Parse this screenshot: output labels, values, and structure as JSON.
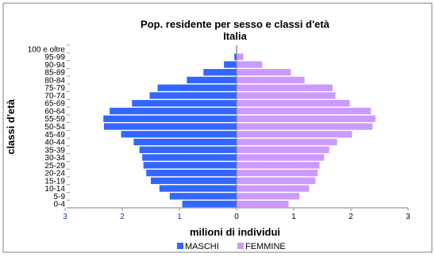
{
  "chart_data": {
    "type": "bar",
    "orientation": "horizontal-pyramid",
    "title": "Pop. residente per sesso e classi d'età",
    "subtitle": "Italia",
    "xlabel": "milioni di individui",
    "ylabel": "classi d'età",
    "xlim": [
      -3,
      3
    ],
    "x_ticks": [
      -3,
      -2,
      -1,
      0,
      1,
      2,
      3
    ],
    "x_tick_labels": [
      "3",
      "2",
      "1",
      "0",
      "1",
      "2",
      "3"
    ],
    "grid": false,
    "legend_position": "bottom",
    "categories": [
      "0-4",
      "5-9",
      "10-14",
      "15-19",
      "20-24",
      "25-29",
      "30-34",
      "35-39",
      "40-44",
      "45-49",
      "50-54",
      "55-59",
      "60-64",
      "65-69",
      "70-74",
      "75-79",
      "80-84",
      "85-89",
      "90-94",
      "95-99",
      "100 e oltre"
    ],
    "series": [
      {
        "name": "MASCHI",
        "color": "#3366ff",
        "values": [
          0.95,
          1.17,
          1.35,
          1.5,
          1.58,
          1.63,
          1.65,
          1.7,
          1.8,
          2.02,
          2.32,
          2.33,
          2.22,
          1.83,
          1.52,
          1.38,
          0.87,
          0.58,
          0.22,
          0.04,
          0.01
        ]
      },
      {
        "name": "FEMMINE",
        "color": "#cc99ff",
        "values": [
          0.91,
          1.1,
          1.27,
          1.38,
          1.42,
          1.45,
          1.53,
          1.62,
          1.76,
          2.02,
          2.38,
          2.43,
          2.35,
          1.98,
          1.73,
          1.68,
          1.19,
          0.95,
          0.45,
          0.12,
          0.01
        ]
      }
    ]
  }
}
